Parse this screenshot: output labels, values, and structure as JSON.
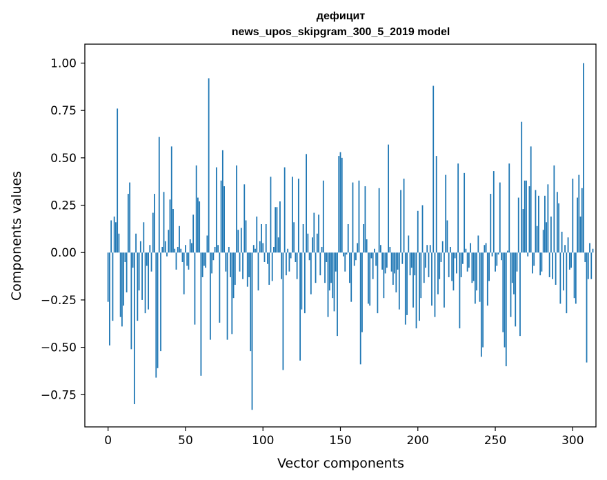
{
  "chart_data": {
    "type": "bar",
    "title": "дефицит",
    "subtitle": "news_upos_skipgram_300_5_2019 model",
    "xlabel": "Vector components",
    "ylabel": "Components values",
    "xlim": [
      -15,
      315
    ],
    "ylim": [
      -0.92,
      1.1
    ],
    "xticks": [
      0,
      50,
      100,
      150,
      200,
      250,
      300
    ],
    "yticks": [
      -0.75,
      -0.5,
      -0.25,
      0.0,
      0.25,
      0.5,
      0.75,
      1.0
    ],
    "xtick_labels": [
      "0",
      "50",
      "100",
      "150",
      "200",
      "250",
      "300"
    ],
    "ytick_labels": [
      "−0.75",
      "−0.50",
      "−0.25",
      "0.00",
      "0.25",
      "0.50",
      "0.75",
      "1.00"
    ],
    "grid": false,
    "color": "#1f77b4",
    "values": [
      -0.26,
      -0.49,
      0.17,
      -0.36,
      0.19,
      0.16,
      0.76,
      0.1,
      -0.34,
      -0.39,
      -0.28,
      -0.05,
      -0.21,
      0.31,
      0.37,
      -0.51,
      -0.08,
      -0.8,
      0.1,
      -0.36,
      -0.2,
      0.06,
      -0.25,
      0.16,
      -0.32,
      -0.07,
      -0.3,
      0.04,
      -0.1,
      0.21,
      0.31,
      -0.66,
      -0.61,
      0.61,
      -0.52,
      0.03,
      0.32,
      0.06,
      -0.02,
      0.12,
      0.28,
      0.56,
      0.23,
      0.02,
      -0.09,
      0.03,
      0.14,
      0.02,
      -0.05,
      -0.22,
      0.04,
      -0.07,
      -0.09,
      0.07,
      0.05,
      0.2,
      -0.38,
      0.46,
      0.29,
      0.27,
      -0.65,
      -0.13,
      -0.07,
      -0.08,
      0.09,
      0.92,
      -0.46,
      -0.11,
      -0.04,
      0.03,
      0.45,
      0.04,
      -0.37,
      0.38,
      0.54,
      0.35,
      -0.1,
      -0.46,
      0.03,
      -0.13,
      -0.43,
      -0.24,
      -0.17,
      0.46,
      0.12,
      -0.1,
      0.13,
      -0.14,
      0.36,
      0.17,
      -0.18,
      -0.13,
      -0.52,
      -0.83,
      0.04,
      0.02,
      0.19,
      -0.2,
      0.06,
      0.15,
      0.05,
      -0.05,
      0.15,
      -0.06,
      -0.17,
      0.4,
      -0.15,
      0.03,
      0.24,
      0.24,
      0.08,
      0.27,
      -0.14,
      -0.62,
      0.45,
      -0.12,
      0.02,
      -0.1,
      -0.03,
      0.4,
      0.16,
      -0.05,
      -0.14,
      0.39,
      -0.57,
      -0.3,
      0.15,
      -0.32,
      0.52,
      0.1,
      -0.04,
      -0.22,
      0.08,
      0.21,
      -0.16,
      0.1,
      0.2,
      -0.12,
      0.03,
      0.38,
      -0.16,
      -0.05,
      -0.34,
      -0.2,
      -0.16,
      -0.24,
      -0.31,
      -0.1,
      -0.44,
      0.51,
      0.53,
      0.5,
      -0.02,
      -0.1,
      -0.01,
      0.15,
      -0.16,
      -0.26,
      0.37,
      -0.07,
      -0.04,
      0.05,
      0.38,
      -0.59,
      -0.42,
      0.15,
      0.35,
      0.07,
      -0.27,
      -0.28,
      -0.03,
      -0.14,
      0.02,
      -0.07,
      -0.32,
      0.34,
      0.04,
      -0.09,
      -0.24,
      -0.11,
      -0.08,
      0.57,
      0.03,
      -0.1,
      -0.17,
      -0.11,
      -0.21,
      -0.09,
      -0.3,
      0.33,
      -0.06,
      0.39,
      -0.38,
      -0.33,
      0.09,
      -0.12,
      -0.08,
      -0.29,
      -0.12,
      -0.4,
      0.22,
      -0.36,
      -0.24,
      0.25,
      -0.16,
      -0.08,
      0.04,
      -0.13,
      0.04,
      -0.28,
      0.88,
      -0.34,
      0.51,
      -0.22,
      -0.14,
      -0.05,
      0.06,
      -0.29,
      0.41,
      0.17,
      -0.13,
      0.03,
      -0.15,
      -0.2,
      -0.03,
      -0.11,
      0.47,
      -0.4,
      -0.13,
      -0.06,
      0.42,
      0.02,
      -0.1,
      -0.08,
      0.05,
      -0.16,
      -0.15,
      -0.27,
      -0.2,
      0.09,
      -0.26,
      -0.55,
      -0.5,
      0.04,
      0.05,
      -0.28,
      -0.15,
      0.31,
      -0.02,
      0.43,
      -0.1,
      -0.07,
      -0.01,
      0.37,
      -0.04,
      -0.42,
      -0.5,
      -0.6,
      0.01,
      0.47,
      -0.34,
      -0.16,
      -0.22,
      -0.39,
      -0.1,
      0.29,
      -0.44,
      0.69,
      0.23,
      0.38,
      0.38,
      -0.02,
      0.35,
      0.56,
      -0.11,
      -0.07,
      0.33,
      0.14,
      0.3,
      -0.12,
      -0.1,
      0.12,
      0.3,
      0.16,
      0.36,
      -0.13,
      0.19,
      -0.14,
      0.46,
      -0.17,
      0.32,
      0.26,
      -0.27,
      0.11,
      -0.2,
      0.04,
      -0.32,
      0.08,
      -0.09,
      -0.08,
      0.39,
      -0.24,
      -0.27,
      0.29,
      0.41,
      0.19,
      0.34,
      1.0,
      -0.05,
      -0.58,
      -0.14,
      0.05,
      -0.14,
      0.02
    ]
  }
}
